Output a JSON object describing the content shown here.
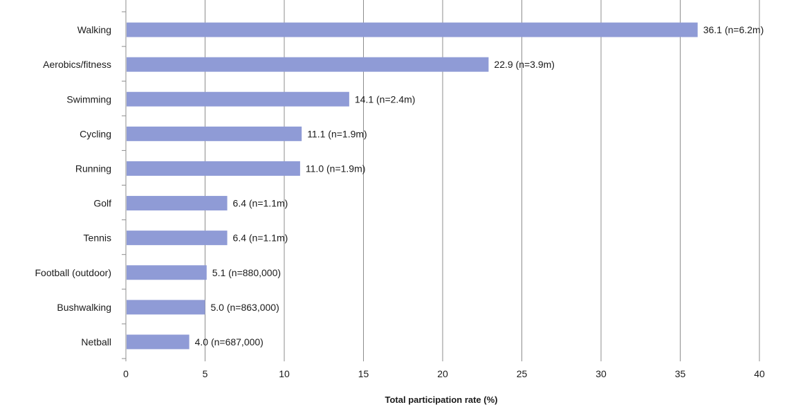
{
  "chart_data": {
    "type": "bar",
    "orientation": "horizontal",
    "title": "",
    "xlabel": "Total participation rate (%)",
    "ylabel": "",
    "xlim": [
      0,
      40
    ],
    "xticks": [
      0,
      5,
      10,
      15,
      20,
      25,
      30,
      35,
      40
    ],
    "grid": true,
    "bar_color": "#8f9bd6",
    "categories": [
      "Walking",
      "Aerobics/fitness",
      "Swimming",
      "Cycling",
      "Running",
      "Golf",
      "Tennis",
      "Football (outdoor)",
      "Bushwalking",
      "Netball"
    ],
    "values": [
      36.1,
      22.9,
      14.1,
      11.1,
      11.0,
      6.4,
      6.4,
      5.1,
      5.0,
      4.0
    ],
    "data_labels": [
      "36.1 (n=6.2m)",
      "22.9 (n=3.9m)",
      "14.1 (n=2.4m)",
      "11.1 (n=1.9m)",
      "11.0 (n=1.9m)",
      "6.4 (n=1.1m)",
      "6.4 (n=1.1m)",
      "5.1 (n=880,000)",
      "5.0 (n=863,000)",
      "4.0 (n=687,000)"
    ]
  }
}
